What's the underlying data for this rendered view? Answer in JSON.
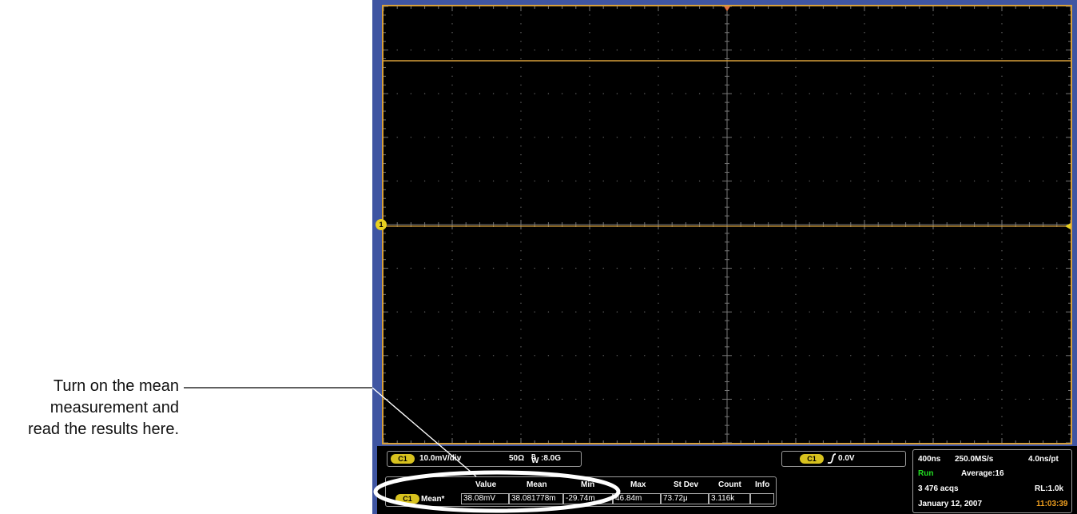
{
  "callout": {
    "line1": "Turn on the mean",
    "line2": "measurement and",
    "line3": "read the results here."
  },
  "scope": {
    "channel_marker": "1",
    "vertical": {
      "badge": "C1",
      "scale": "10.0mV/div",
      "impedance": "50Ω",
      "bandwidth_label": "B",
      "bandwidth_sub": "W",
      "bandwidth_value": ":8.0G"
    },
    "trigger": {
      "badge": "C1",
      "slope_icon": "rising-edge-icon",
      "level": "0.0V"
    },
    "measurement": {
      "headers": [
        "Value",
        "Mean",
        "Min",
        "Max",
        "St Dev",
        "Count",
        "Info"
      ],
      "badge": "C1",
      "label": "Mean*",
      "values": [
        "38.08mV",
        "38.081778m",
        "-29.74m",
        "46.84m",
        "73.72μ",
        "3.116k",
        ""
      ]
    },
    "horizontal": {
      "time_div": "400ns",
      "sample_rate": "250.0MS/s",
      "resolution": "4.0ns/pt",
      "status": "Run",
      "acq_mode": "Average:16",
      "acqs": "3 476 acqs",
      "record_length": "RL:1.0k",
      "date": "January 12, 2007",
      "time": "11:03:39"
    },
    "colors": {
      "trace": "#d8a03a",
      "ground_marker": "#e8d020",
      "frame": "#3f55a2",
      "status_run": "#22dd22",
      "clock": "#f0a020"
    }
  }
}
